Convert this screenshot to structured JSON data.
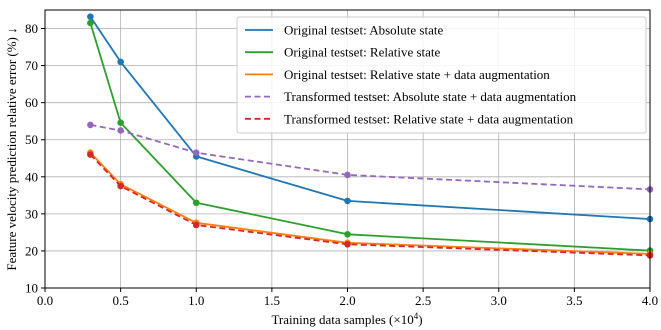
{
  "chart_data": {
    "type": "line",
    "xlabel_prefix": "Training data samples (×10",
    "xlabel_exp": "4",
    "xlabel_suffix": ")",
    "ylabel": "Feature velocity prediction relative error (%) ↓",
    "xlim": [
      0,
      4
    ],
    "ylim": [
      10,
      85
    ],
    "xticks": [
      0,
      0.5,
      1,
      1.5,
      2,
      2.5,
      3,
      3.5,
      4
    ],
    "xtick_labels": [
      "0.0",
      "0.5",
      "1.0",
      "1.5",
      "2.0",
      "2.5",
      "3.0",
      "3.5",
      "4.0"
    ],
    "yticks": [
      10,
      20,
      30,
      40,
      50,
      60,
      70,
      80
    ],
    "ytick_labels": [
      "10",
      "20",
      "30",
      "40",
      "50",
      "60",
      "70",
      "80"
    ],
    "grid": true,
    "legend_position": "top-right",
    "series": [
      {
        "name": "Original testset: Absolute state",
        "color": "#1f77b4",
        "dashed": false,
        "x": [
          0.3,
          0.5,
          1.0,
          2.0,
          4.0
        ],
        "y": [
          83.2,
          71.0,
          45.5,
          33.5,
          28.6
        ]
      },
      {
        "name": "Original testset: Relative state",
        "color": "#2ca02c",
        "dashed": false,
        "x": [
          0.3,
          0.5,
          1.0,
          2.0,
          4.0
        ],
        "y": [
          81.5,
          54.6,
          33.0,
          24.5,
          20.1
        ]
      },
      {
        "name": "Original testset: Relative state + data augmentation",
        "color": "#ff7f0e",
        "dashed": false,
        "x": [
          0.3,
          0.5,
          1.0,
          2.0,
          4.0
        ],
        "y": [
          46.5,
          38.0,
          27.6,
          22.2,
          19.2
        ]
      },
      {
        "name": "Transformed testset: Absolute state + data augmentation",
        "color": "#9467bd",
        "dashed": true,
        "x": [
          0.3,
          0.5,
          1.0,
          2.0,
          4.0
        ],
        "y": [
          54.0,
          52.5,
          46.5,
          40.5,
          36.6
        ]
      },
      {
        "name": "Transformed testset: Relative state + data augmentation",
        "color": "#d62728",
        "dashed": true,
        "x": [
          0.3,
          0.5,
          1.0,
          2.0,
          4.0
        ],
        "y": [
          46.0,
          37.5,
          27.0,
          21.8,
          18.8
        ]
      }
    ]
  }
}
